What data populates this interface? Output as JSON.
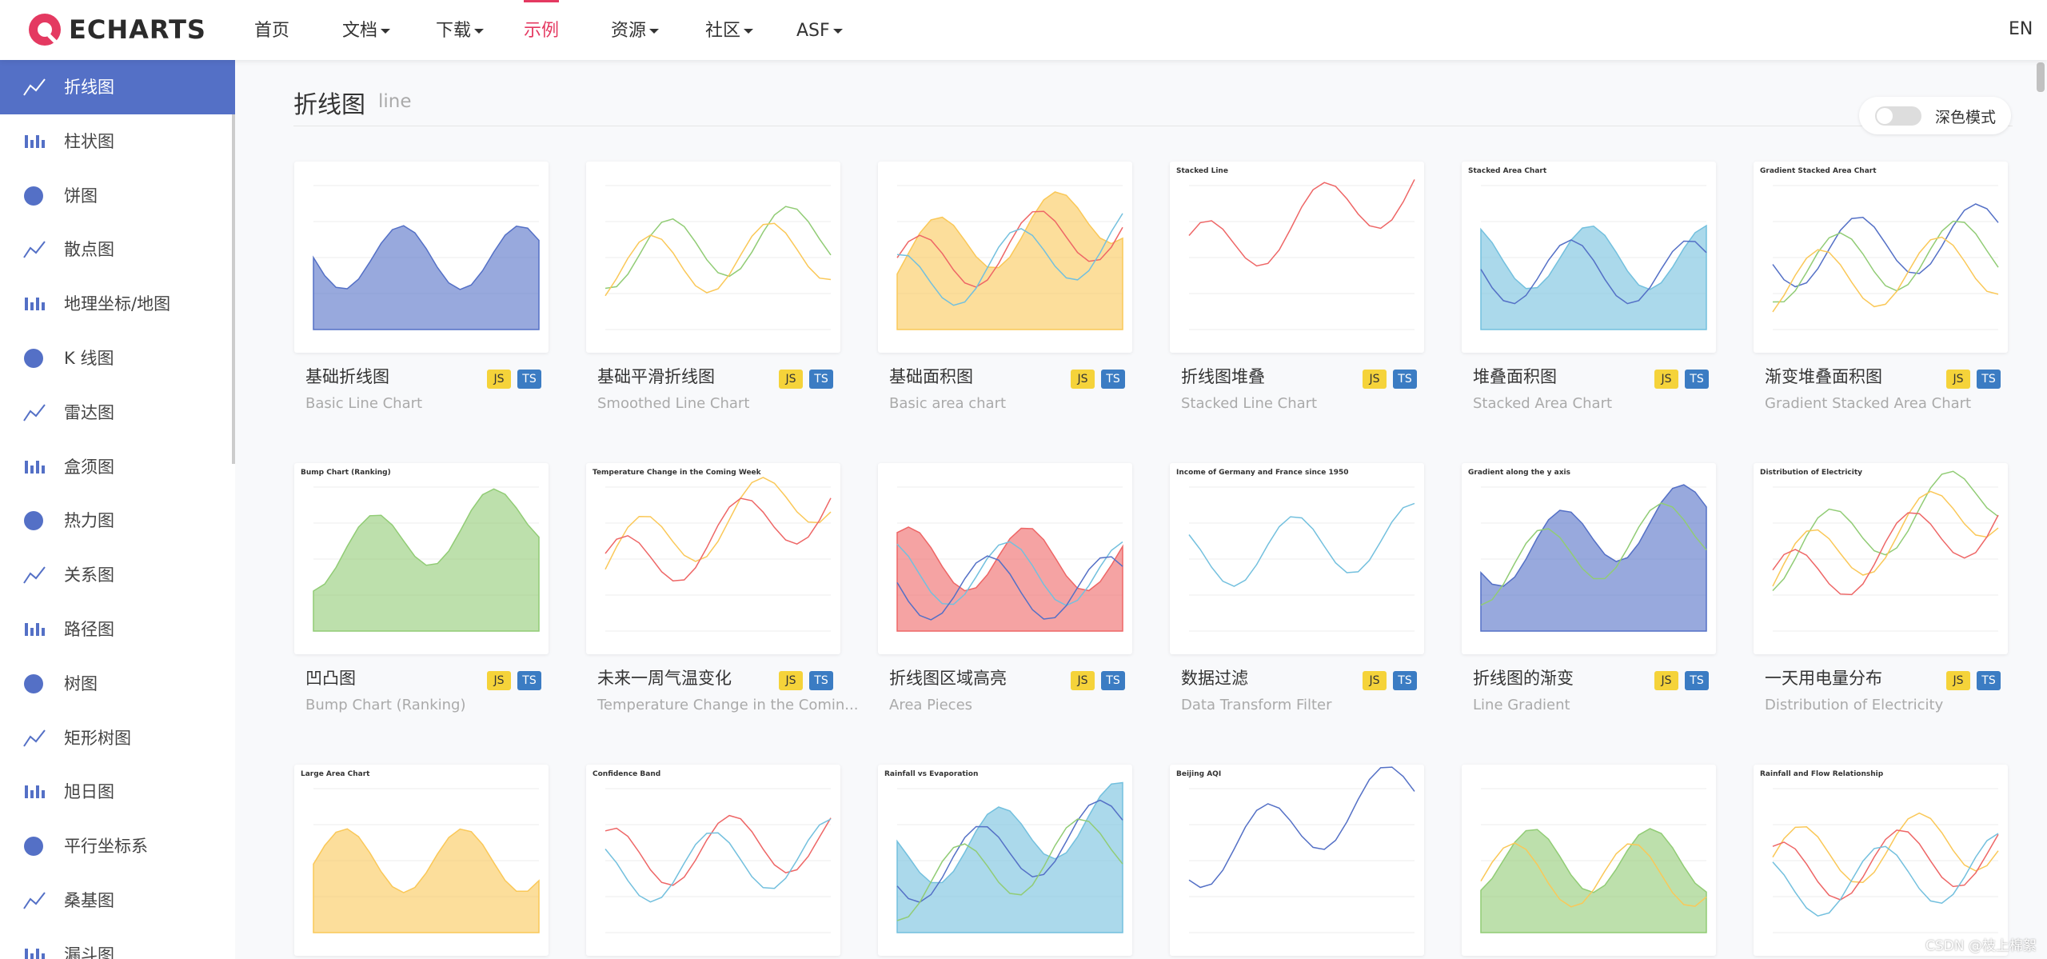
{
  "header": {
    "logo": "ECHARTS",
    "nav": [
      {
        "label": "首页"
      },
      {
        "label": "文档",
        "dropdown": true
      },
      {
        "label": "下载",
        "dropdown": true
      },
      {
        "label": "示例",
        "active": true
      },
      {
        "label": "资源",
        "dropdown": true
      },
      {
        "label": "社区",
        "dropdown": true
      },
      {
        "label": "ASF",
        "dropdown": true
      }
    ],
    "lang": "EN"
  },
  "sidebar": {
    "items": [
      {
        "label": "折线图",
        "active": true
      },
      {
        "label": "柱状图"
      },
      {
        "label": "饼图"
      },
      {
        "label": "散点图"
      },
      {
        "label": "地理坐标/地图"
      },
      {
        "label": "K 线图"
      },
      {
        "label": "雷达图"
      },
      {
        "label": "盒须图"
      },
      {
        "label": "热力图"
      },
      {
        "label": "关系图"
      },
      {
        "label": "路径图"
      },
      {
        "label": "树图"
      },
      {
        "label": "矩形树图"
      },
      {
        "label": "旭日图"
      },
      {
        "label": "平行坐标系"
      },
      {
        "label": "桑基图"
      },
      {
        "label": "漏斗图"
      }
    ]
  },
  "page": {
    "title": "折线图",
    "subtitle": "line",
    "dark_mode_label": "深色模式"
  },
  "badges": [
    "JS",
    "TS"
  ],
  "cards": [
    {
      "title": "基础折线图",
      "subtitle": "Basic Line Chart"
    },
    {
      "title": "基础平滑折线图",
      "subtitle": "Smoothed Line Chart"
    },
    {
      "title": "基础面积图",
      "subtitle": "Basic area chart"
    },
    {
      "title": "折线图堆叠",
      "subtitle": "Stacked Line Chart",
      "thumb_title": "Stacked Line"
    },
    {
      "title": "堆叠面积图",
      "subtitle": "Stacked Area Chart",
      "thumb_title": "Stacked Area Chart"
    },
    {
      "title": "渐变堆叠面积图",
      "subtitle": "Gradient Stacked Area Chart",
      "thumb_title": "Gradient Stacked Area Chart"
    },
    {
      "title": "凹凸图",
      "subtitle": "Bump Chart (Ranking)",
      "thumb_title": "Bump Chart (Ranking)"
    },
    {
      "title": "未来一周气温变化",
      "subtitle": "Temperature Change in the Comin...",
      "thumb_title": "Temperature Change in the Coming Week"
    },
    {
      "title": "折线图区域高亮",
      "subtitle": "Area Pieces"
    },
    {
      "title": "数据过滤",
      "subtitle": "Data Transform Filter",
      "thumb_title": "Income of Germany and France since 1950"
    },
    {
      "title": "折线图的渐变",
      "subtitle": "Line Gradient",
      "thumb_title": "Gradient along the y axis"
    },
    {
      "title": "一天用电量分布",
      "subtitle": "Distribution of Electricity",
      "thumb_title": "Distribution of Electricity"
    },
    {
      "thumb_title": "Large Area Chart"
    },
    {
      "thumb_title": "Confidence Band"
    },
    {
      "thumb_title": "Rainfall vs Evaporation"
    },
    {
      "thumb_title": "Beijing AQI"
    },
    {},
    {
      "thumb_title": "Rainfall and Flow Relationship"
    }
  ],
  "watermark": "CSDN @枝上棉絮"
}
